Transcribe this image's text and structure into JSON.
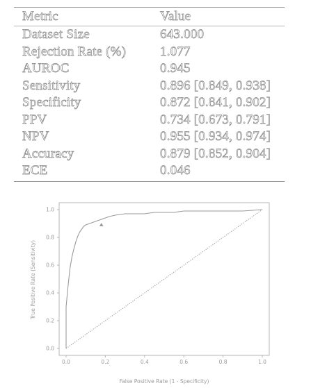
{
  "table": {
    "header": {
      "metric": "Metric",
      "value": "Value"
    },
    "rows": [
      {
        "metric": "Dataset Size",
        "value": "643.000"
      },
      {
        "metric": "Rejection Rate (%)",
        "value": "1.077"
      },
      {
        "metric": "AUROC",
        "value": "0.945"
      },
      {
        "metric": "Sensitivity",
        "value": "0.896 [0.849, 0.938]"
      },
      {
        "metric": "Specificity",
        "value": "0.872 [0.841, 0.902]"
      },
      {
        "metric": "PPV",
        "value": "0.734 [0.673, 0.791]"
      },
      {
        "metric": "NPV",
        "value": "0.955 [0.934, 0.974]"
      },
      {
        "metric": "Accuracy",
        "value": "0.879 [0.852, 0.904]"
      },
      {
        "metric": "ECE",
        "value": "0.046"
      }
    ]
  },
  "chart_data": {
    "type": "line",
    "xlabel": "False Positive Rate (1 - Specificity)",
    "ylabel": "True Positive Rate (Sensitivity)",
    "xlim": [
      0,
      1
    ],
    "ylim": [
      0,
      1
    ],
    "xticks": [
      "0.0",
      "0.2",
      "0.4",
      "0.6",
      "0.8",
      "1.0"
    ],
    "yticks": [
      "0.0",
      "0.2",
      "0.4",
      "0.6",
      "0.8",
      "1.0"
    ],
    "series": [
      {
        "x": [
          0.0,
          0.0,
          0.01,
          0.02,
          0.03,
          0.04,
          0.05,
          0.06,
          0.07,
          0.08,
          0.09,
          0.1,
          0.12,
          0.14,
          0.16,
          0.18,
          0.2,
          0.22,
          0.25,
          0.3,
          0.35,
          0.4,
          0.45,
          0.5,
          0.55,
          0.6,
          0.7,
          0.8,
          0.9,
          1.0
        ],
        "y": [
          0.0,
          0.3,
          0.45,
          0.58,
          0.66,
          0.72,
          0.77,
          0.81,
          0.84,
          0.86,
          0.88,
          0.89,
          0.9,
          0.91,
          0.92,
          0.93,
          0.94,
          0.95,
          0.96,
          0.97,
          0.97,
          0.97,
          0.98,
          0.98,
          0.98,
          0.99,
          0.99,
          0.99,
          0.99,
          1.0
        ],
        "color": "#9a9a9a"
      },
      {
        "x": [
          0,
          1
        ],
        "y": [
          0,
          1
        ],
        "color": "#9a9a9a",
        "style": "dotted"
      }
    ],
    "points": [
      {
        "x": 0.18,
        "y": 0.89,
        "marker": "triangle"
      }
    ],
    "grid": false
  }
}
